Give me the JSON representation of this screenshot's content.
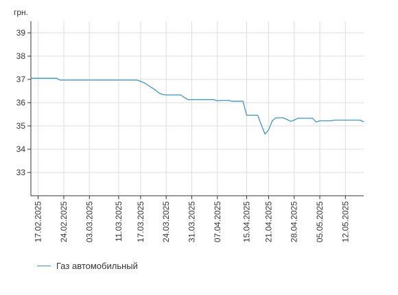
{
  "chart_data": {
    "type": "line",
    "ylabel": "грн.",
    "ylim": [
      32,
      39.5
    ],
    "yticks": [
      33,
      34,
      35,
      36,
      37,
      38,
      39
    ],
    "xlim": [
      "2025-02-15",
      "2025-05-17"
    ],
    "xtick_dates": [
      "2025-02-17",
      "2025-02-24",
      "2025-03-03",
      "2025-03-11",
      "2025-03-17",
      "2025-03-24",
      "2025-03-31",
      "2025-04-07",
      "2025-04-15",
      "2025-04-21",
      "2025-04-28",
      "2025-05-05",
      "2025-05-12"
    ],
    "xtick_labels": [
      "17.02.2025",
      "24.02.2025",
      "03.03.2025",
      "11.03.2025",
      "17.03.2025",
      "24.03.2025",
      "31.03.2025",
      "07.04.2025",
      "15.04.2025",
      "21.04.2025",
      "28.04.2025",
      "05.05.2025",
      "12.05.2025"
    ],
    "grid": true,
    "legend_position": "bottom-left",
    "colors": {
      "line": "#3a98c6",
      "grid": "#dddddd",
      "axis": "#333333"
    },
    "series": [
      {
        "name": "Газ автомобильный",
        "x": [
          "2025-02-15",
          "2025-02-22",
          "2025-02-23",
          "2025-03-16",
          "2025-03-17",
          "2025-03-18",
          "2025-03-19",
          "2025-03-20",
          "2025-03-21",
          "2025-03-22",
          "2025-03-23",
          "2025-03-24",
          "2025-03-28",
          "2025-03-29",
          "2025-03-30",
          "2025-04-06",
          "2025-04-07",
          "2025-04-08",
          "2025-04-10",
          "2025-04-11",
          "2025-04-14",
          "2025-04-15",
          "2025-04-18",
          "2025-04-20",
          "2025-04-21",
          "2025-04-22",
          "2025-04-23",
          "2025-04-25",
          "2025-04-26",
          "2025-04-27",
          "2025-04-28",
          "2025-04-29",
          "2025-05-03",
          "2025-05-04",
          "2025-05-05",
          "2025-05-08",
          "2025-05-09",
          "2025-05-16",
          "2025-05-17"
        ],
        "y": [
          37.05,
          37.05,
          36.97,
          36.97,
          36.92,
          36.85,
          36.75,
          36.65,
          36.55,
          36.42,
          36.35,
          36.33,
          36.33,
          36.22,
          36.13,
          36.13,
          36.08,
          36.1,
          36.1,
          36.06,
          36.06,
          35.46,
          35.46,
          34.65,
          34.83,
          35.22,
          35.35,
          35.35,
          35.28,
          35.2,
          35.25,
          35.33,
          35.33,
          35.17,
          35.22,
          35.22,
          35.25,
          35.25,
          35.18
        ]
      }
    ]
  },
  "legend": {
    "label": "Газ автомобильный"
  }
}
